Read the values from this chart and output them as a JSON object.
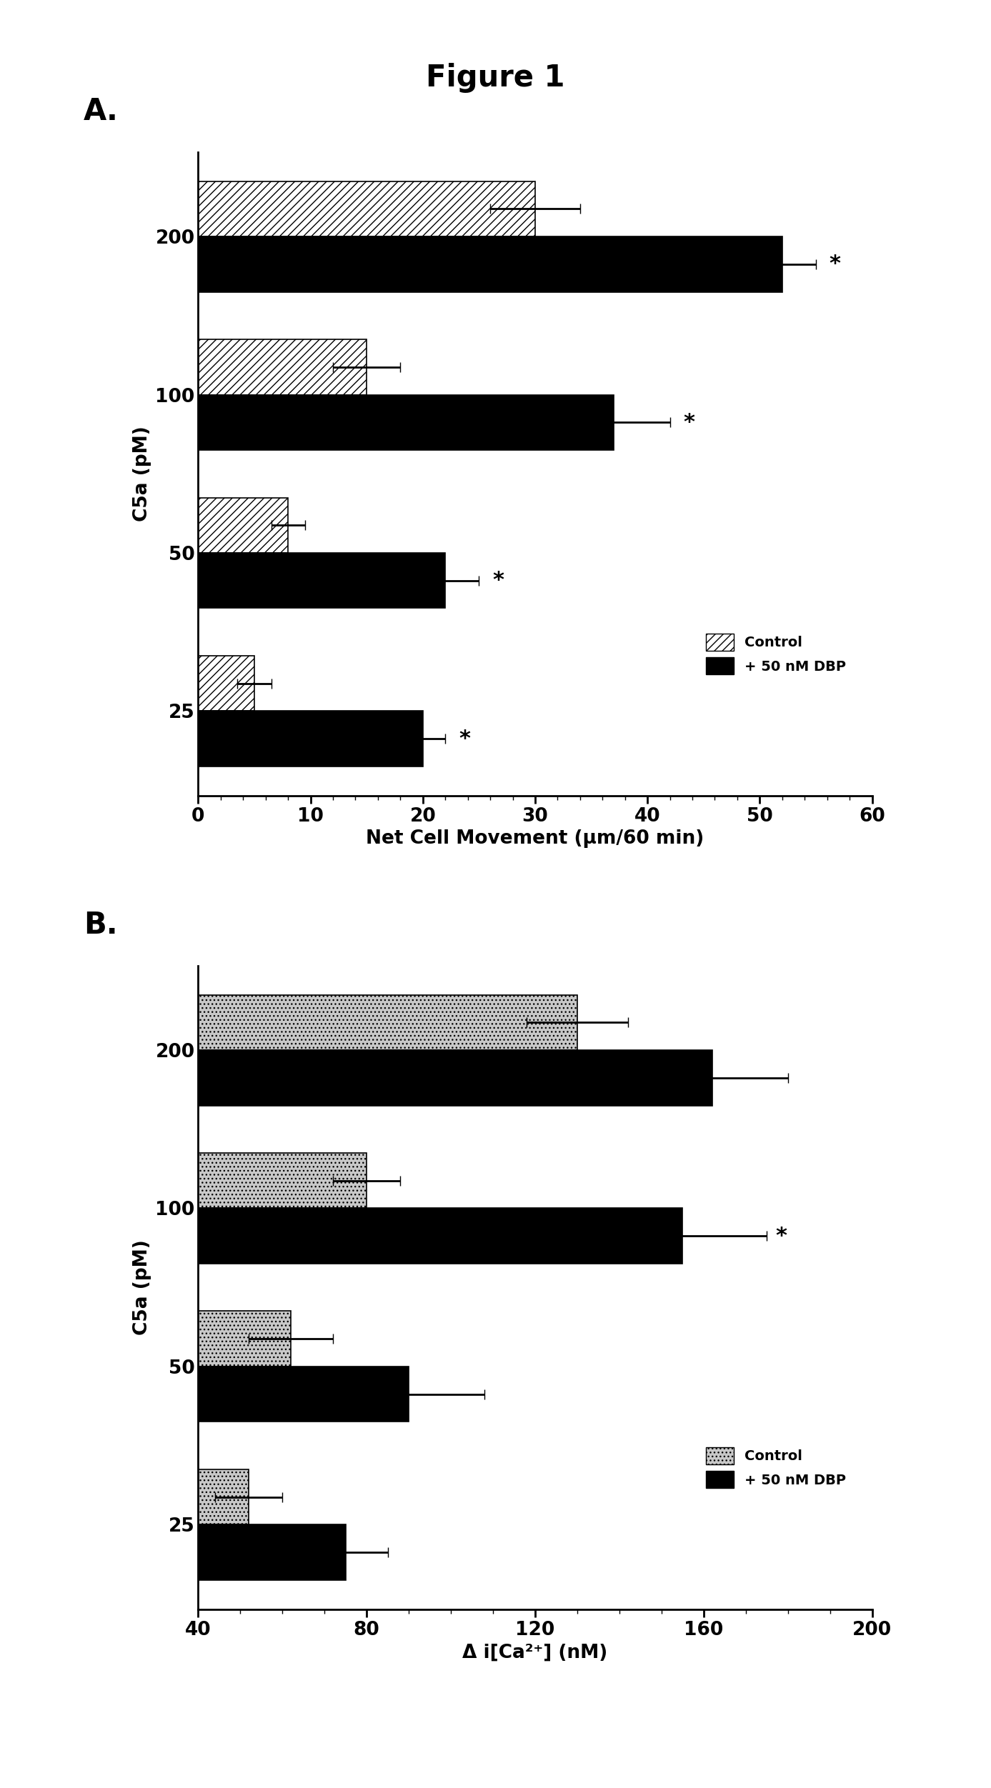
{
  "title": "Figure 1",
  "panel_A": {
    "label": "A.",
    "categories": [
      25,
      50,
      100,
      200
    ],
    "control_values": [
      5.0,
      8.0,
      15.0,
      30.0
    ],
    "control_errors": [
      1.5,
      1.5,
      3.0,
      4.0
    ],
    "dbp_values": [
      20.0,
      22.0,
      37.0,
      52.0
    ],
    "dbp_errors": [
      2.0,
      3.0,
      5.0,
      3.0
    ],
    "xlabel": "Net Cell Movement (μm/60 min)",
    "ylabel": "C5a (pM)",
    "xlim": [
      0,
      60
    ],
    "xticks": [
      0,
      10,
      20,
      30,
      40,
      50,
      60
    ],
    "significant": [
      true,
      true,
      true,
      true
    ]
  },
  "panel_B": {
    "label": "B.",
    "categories": [
      25,
      50,
      100,
      200
    ],
    "control_values": [
      52.0,
      62.0,
      80.0,
      130.0
    ],
    "control_errors": [
      8.0,
      10.0,
      8.0,
      12.0
    ],
    "dbp_values": [
      75.0,
      90.0,
      155.0,
      162.0
    ],
    "dbp_errors": [
      10.0,
      18.0,
      20.0,
      18.0
    ],
    "xlabel": "Δ i[Ca²⁺] (nM)",
    "ylabel": "C5a (pM)",
    "xlim": [
      40,
      200
    ],
    "xticks": [
      40,
      80,
      120,
      160,
      200
    ],
    "significant": [
      false,
      false,
      true,
      false
    ]
  },
  "legend_control_A": "Control",
  "legend_dbp_A": "+ 50 nM DBP",
  "legend_control_B": "Control",
  "legend_dbp_B": "+ 50 nM DBP",
  "bar_height": 0.35,
  "hatch_A": "///",
  "hatch_B": "...",
  "dbp_color": "#000000",
  "control_facecolor_A": "white",
  "control_facecolor_B": "#c8c8c8",
  "background_color": "#ffffff",
  "title_fontsize": 30,
  "label_fontsize": 26,
  "tick_fontsize": 19,
  "xlabel_fontsize": 19,
  "ylabel_fontsize": 19
}
